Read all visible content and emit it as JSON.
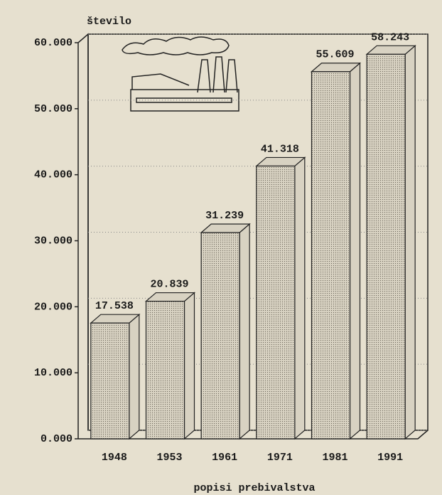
{
  "chart_data": {
    "type": "bar3d",
    "y_label": "število",
    "x_label": "popisi prebivalstva",
    "categories": [
      "1948",
      "1953",
      "1961",
      "1971",
      "1981",
      "1991"
    ],
    "values": [
      17538,
      20839,
      31239,
      41318,
      55609,
      58243
    ],
    "value_labels": [
      "17.538",
      "20.839",
      "31.239",
      "41.318",
      "55.609",
      "58.243"
    ],
    "ylim": [
      0,
      60000
    ],
    "yticks": [
      {
        "value": 0,
        "label": "0.000"
      },
      {
        "value": 10000,
        "label": "10.000"
      },
      {
        "value": 20000,
        "label": "20.000"
      },
      {
        "value": 30000,
        "label": "30.000"
      },
      {
        "value": 40000,
        "label": "40.000"
      },
      {
        "value": 50000,
        "label": "50.000"
      },
      {
        "value": 60000,
        "label": "60.000"
      }
    ],
    "grid": true,
    "color": "#d8d2c2"
  }
}
